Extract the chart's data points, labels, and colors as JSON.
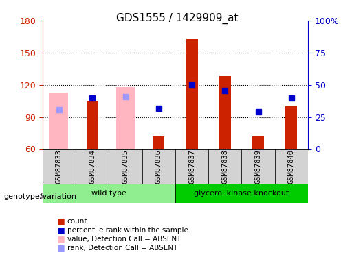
{
  "title": "GDS1555 / 1429909_at",
  "samples": [
    "GSM87833",
    "GSM87834",
    "GSM87835",
    "GSM87836",
    "GSM87837",
    "GSM87838",
    "GSM87839",
    "GSM87840"
  ],
  "count_values": [
    null,
    105,
    null,
    72,
    163,
    128,
    72,
    100
  ],
  "count_absent": [
    113,
    null,
    118,
    null,
    null,
    null,
    null,
    null
  ],
  "rank_values": [
    null,
    108,
    null,
    98,
    120,
    115,
    95,
    108
  ],
  "rank_absent": [
    97,
    null,
    109,
    null,
    null,
    null,
    null,
    null
  ],
  "ylim": [
    60,
    180
  ],
  "y2lim": [
    0,
    100
  ],
  "yticks": [
    60,
    90,
    120,
    150,
    180
  ],
  "y2ticks": [
    0,
    25,
    50,
    75,
    100
  ],
  "ytick_labels": [
    "60",
    "90",
    "120",
    "150",
    "180"
  ],
  "y2tick_labels": [
    "0",
    "25",
    "50",
    "75",
    "100%"
  ],
  "genotype_groups": [
    {
      "label": "wild type",
      "start": 0,
      "end": 4,
      "color": "#90EE90"
    },
    {
      "label": "glycerol kinase knockout",
      "start": 4,
      "end": 8,
      "color": "#00CC00"
    }
  ],
  "bar_color_red": "#CC2200",
  "bar_color_pink": "#FFB6C1",
  "dot_color_blue": "#0000CC",
  "dot_color_lightblue": "#9999FF",
  "baseline": 60,
  "bar_width": 0.35,
  "legend_items": [
    {
      "color": "#CC2200",
      "marker": "s",
      "label": "count"
    },
    {
      "color": "#0000CC",
      "marker": "s",
      "label": "percentile rank within the sample"
    },
    {
      "color": "#FFB6C1",
      "marker": "s",
      "label": "value, Detection Call = ABSENT"
    },
    {
      "color": "#9999FF",
      "marker": "s",
      "label": "rank, Detection Call = ABSENT"
    }
  ],
  "xlabel_genotype": "genotype/variation",
  "background_color": "#FFFFFF",
  "plot_bg_color": "#FFFFFF",
  "grid_color": "#000000",
  "tick_label_color_left": "#CC2200",
  "tick_label_color_right": "#0000CC"
}
